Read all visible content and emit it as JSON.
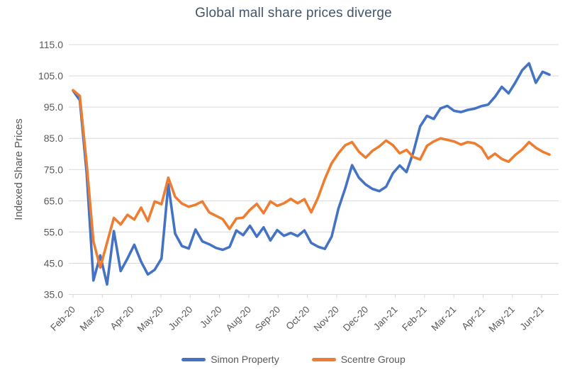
{
  "title": "Global mall share prices diverge",
  "y_axis_title": "Indexed Share Prices",
  "colors": {
    "simon_property": "#4472C4",
    "scentre_group": "#ED7D31",
    "gridline": "#D9D9D9",
    "axis_text": "#595959",
    "title_text": "#44546A"
  },
  "legend": {
    "items": [
      "Simon Property",
      "Scentre Group"
    ]
  },
  "chart_data": {
    "type": "line",
    "title": "Global mall share prices diverge",
    "xlabel": "",
    "ylabel": "Indexed Share Prices",
    "ylim": [
      35,
      115
    ],
    "grid": true,
    "legend_position": "bottom",
    "x_unit": "weekly observations, Feb-2020 to Jun-2021",
    "x_tick_labels": [
      "Feb-20",
      "Mar-20",
      "Apr-20",
      "May-20",
      "Jun-20",
      "Jul-20",
      "Aug-20",
      "Sep-20",
      "Oct-20",
      "Nov-20",
      "Dec-20",
      "Jan-21",
      "Feb-21",
      "Mar-21",
      "Apr-21",
      "May-21",
      "Jun-21"
    ],
    "y_tick_labels": [
      "115.0",
      "105.0",
      "95.0",
      "85.0",
      "75.0",
      "65.0",
      "55.0",
      "45.0",
      "35.0"
    ],
    "series": [
      {
        "name": "Simon Property",
        "color": "#4472C4",
        "values": [
          100.3,
          97.2,
          74,
          39.5,
          47.5,
          38.2,
          55.3,
          42.5,
          46.5,
          50.9,
          45.5,
          41.4,
          42.9,
          46.5,
          70.3,
          54.5,
          50.5,
          49.7,
          55.8,
          52,
          51.1,
          49.9,
          49.3,
          50.2,
          55.5,
          54,
          57,
          53.5,
          56.5,
          52.3,
          55.6,
          53.8,
          54.7,
          53.7,
          55.5,
          51.5,
          50.3,
          49.6,
          53.5,
          62.5,
          69,
          76.4,
          72.4,
          70.2,
          68.8,
          68.1,
          69.5,
          73.8,
          76.3,
          74.2,
          80.5,
          88.8,
          92.2,
          91.2,
          94.6,
          95.4,
          93.8,
          93.4,
          94.1,
          94.5,
          95.3,
          95.8,
          98.3,
          101.5,
          99.4,
          102.9,
          106.8,
          109,
          102.8,
          106.3,
          105.4
        ]
      },
      {
        "name": "Scentre Group",
        "color": "#ED7D31",
        "values": [
          100.4,
          98.6,
          77,
          52,
          43.6,
          51.6,
          59.5,
          57.4,
          60.5,
          59,
          62.8,
          58.5,
          64.8,
          63.9,
          72.4,
          66.3,
          64.1,
          63.1,
          63.7,
          64.8,
          61.3,
          60.2,
          59.1,
          56,
          59.3,
          59.6,
          62.1,
          64,
          61,
          64.8,
          63.4,
          64.2,
          65.6,
          64.2,
          65.5,
          61.3,
          66,
          72,
          77,
          80.2,
          82.8,
          83.8,
          80.7,
          78.8,
          81,
          82.4,
          84.3,
          82.8,
          80.2,
          81.3,
          79,
          78.2,
          82.6,
          84,
          85,
          84.5,
          84,
          83,
          83.8,
          83.4,
          82,
          78.5,
          80.1,
          78.4,
          77.5,
          79.7,
          81.4,
          83.8,
          82,
          80.7,
          79.8
        ]
      }
    ]
  }
}
